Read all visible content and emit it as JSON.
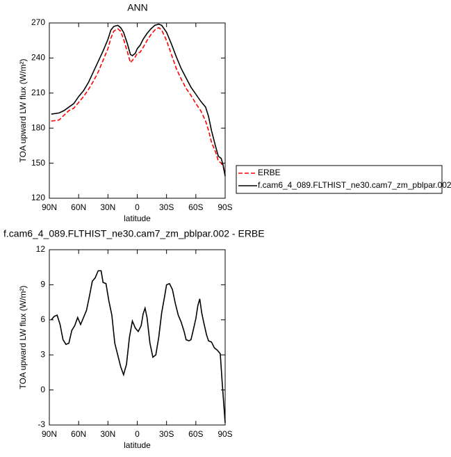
{
  "chart_data": [
    {
      "type": "line",
      "title": "ANN",
      "y_label": "TOA upward LW flux (W/m²)",
      "x_label": "latitude",
      "xlim": [
        90,
        -90
      ],
      "xticks": [
        {
          "value": 90,
          "label": "90N"
        },
        {
          "value": 60,
          "label": "60N"
        },
        {
          "value": 30,
          "label": "30N"
        },
        0,
        {
          "value": -30,
          "label": "30S"
        },
        {
          "value": -60,
          "label": "60S"
        },
        {
          "value": -90,
          "label": "90S"
        }
      ],
      "ylim": [
        120,
        270
      ],
      "yticks": [
        120,
        150,
        180,
        210,
        240,
        270
      ],
      "legend": "right",
      "x": [
        88,
        80,
        75,
        70,
        65,
        60,
        55,
        50,
        45,
        40,
        35,
        30,
        27,
        24,
        20,
        17,
        14,
        10,
        7,
        5,
        2,
        0,
        -3,
        -6,
        -10,
        -14,
        -18,
        -22,
        -25,
        -30,
        -35,
        -40,
        -45,
        -50,
        -55,
        -60,
        -65,
        -70,
        -73,
        -76,
        -80,
        -83,
        -86,
        -88,
        -90
      ],
      "series": [
        {
          "name": "ERBE",
          "color": "#ff0000",
          "line_style": "dashed",
          "values": [
            186,
            187,
            191,
            195,
            197,
            202,
            207,
            213,
            220,
            228,
            238,
            248,
            257,
            263,
            265,
            263,
            256,
            245,
            236,
            238,
            241,
            244,
            245,
            249,
            255,
            260,
            264,
            266,
            264,
            255,
            243,
            231,
            222,
            214,
            208,
            201,
            195,
            186,
            178,
            168,
            160,
            152,
            150,
            147,
            140
          ]
        },
        {
          "name": "f.cam6_4_089.FLTHIST_ne30.cam7_zm_pblpar.002",
          "color": "#000000",
          "line_style": "solid",
          "values": [
            192,
            193,
            195,
            198,
            201,
            207,
            212,
            219,
            228,
            237,
            246,
            256,
            264,
            267,
            268,
            266,
            262,
            252,
            243,
            242,
            244,
            248,
            251,
            256,
            261,
            265,
            268,
            269,
            268,
            262,
            252,
            241,
            231,
            223,
            215,
            209,
            203,
            198,
            190,
            178,
            165,
            156,
            154,
            148,
            139
          ]
        }
      ]
    },
    {
      "type": "line",
      "title": "f.cam6_4_089.FLTHIST_ne30.cam7_zm_pblpar.002 - ERBE",
      "y_label": "TOA upward LW flux (W/m²)",
      "x_label": "latitude",
      "xlim": [
        90,
        -90
      ],
      "xticks": [
        {
          "value": 90,
          "label": "90N"
        },
        {
          "value": 60,
          "label": "60N"
        },
        {
          "value": 30,
          "label": "30N"
        },
        0,
        {
          "value": -30,
          "label": "30S"
        },
        {
          "value": -60,
          "label": "60S"
        },
        {
          "value": -90,
          "label": "90S"
        }
      ],
      "ylim": [
        -3,
        12
      ],
      "yticks": [
        -3,
        0,
        3,
        6,
        9,
        12
      ],
      "x": [
        88,
        85,
        82,
        79,
        76,
        73,
        70,
        67,
        64,
        61,
        58,
        55,
        52,
        49,
        46,
        43,
        40,
        37,
        35,
        32,
        29,
        26,
        23,
        20,
        17,
        14,
        11,
        8,
        5,
        2,
        -1,
        -4,
        -6,
        -8,
        -10,
        -13,
        -16,
        -19,
        -22,
        -25,
        -28,
        -30,
        -33,
        -36,
        -39,
        -42,
        -45,
        -48,
        -50,
        -53,
        -55,
        -57,
        -60,
        -62,
        -64,
        -66,
        -68,
        -71,
        -73,
        -76,
        -79,
        -82,
        -85,
        -87,
        -90
      ],
      "series": [
        {
          "color": "#000000",
          "line_style": "solid",
          "values": [
            6.0,
            6.3,
            6.4,
            5.6,
            4.3,
            3.9,
            4.0,
            5.1,
            5.5,
            6.2,
            5.6,
            6.2,
            6.8,
            8.0,
            9.3,
            9.6,
            10.2,
            10.2,
            9.2,
            9.1,
            7.6,
            6.4,
            4.0,
            3.0,
            2.0,
            1.3,
            2.2,
            4.5,
            5.9,
            5.3,
            5.0,
            5.5,
            6.5,
            7.0,
            6.2,
            4.0,
            2.8,
            3.0,
            4.5,
            6.6,
            8.0,
            9.0,
            9.1,
            8.6,
            7.4,
            6.4,
            5.8,
            5.0,
            4.3,
            4.2,
            4.3,
            5.0,
            6.1,
            7.2,
            7.8,
            6.6,
            5.8,
            4.7,
            4.2,
            4.1,
            3.6,
            3.4,
            3.1,
            0.6,
            -2.8
          ]
        }
      ]
    }
  ]
}
